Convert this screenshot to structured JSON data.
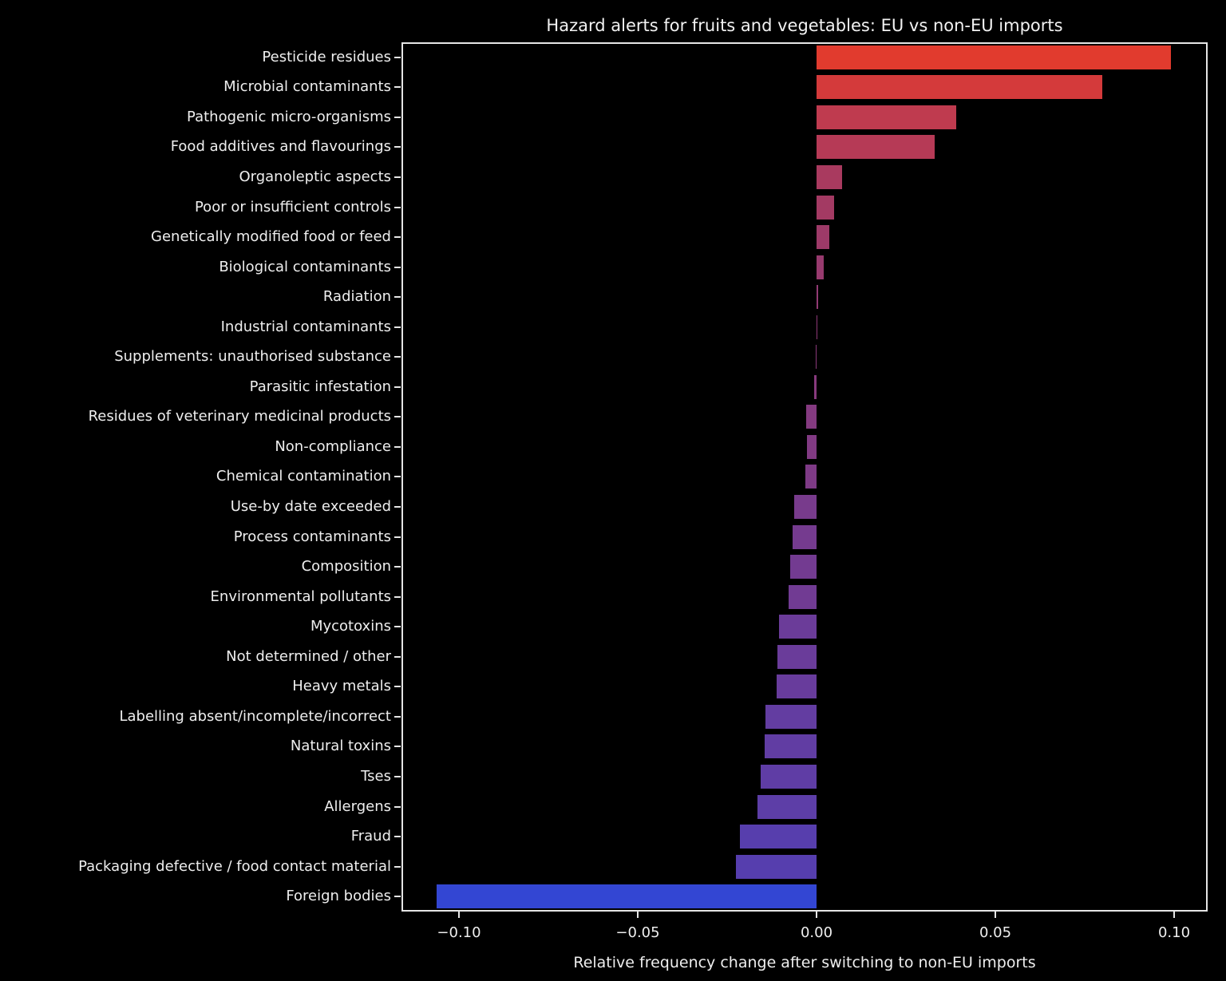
{
  "chart_data": {
    "type": "bar",
    "orientation": "horizontal",
    "title": "Hazard alerts for fruits and vegetables: EU vs non-EU imports",
    "xlabel": "Relative frequency change after switching to non-EU imports",
    "xlim": [
      -0.116,
      0.109
    ],
    "xticks": [
      -0.1,
      -0.05,
      0.0,
      0.05,
      0.1
    ],
    "xtick_labels": [
      "−0.10",
      "−0.05",
      "0.00",
      "0.05",
      "0.10"
    ],
    "grid": false,
    "legend": "none",
    "background_color": "#000000",
    "axis_color": "#e6e6e6",
    "text_color": "#eeeeee",
    "categories": [
      "Pesticide residues",
      "Microbial contaminants",
      "Pathogenic micro-organisms",
      "Food additives and flavourings",
      "Organoleptic aspects",
      "Poor or insufficient controls",
      "Genetically modified food or feed",
      "Biological contaminants",
      "Radiation",
      "Industrial contaminants",
      "Supplements: unauthorised substance",
      "Parasitic infestation",
      "Residues of veterinary medicinal products",
      "Non-compliance",
      "Chemical contamination",
      "Use-by date exceeded",
      "Process contaminants",
      "Composition",
      "Environmental pollutants",
      "Mycotoxins",
      "Not determined / other",
      "Heavy metals",
      "Labelling absent/incomplete/incorrect",
      "Natural toxins",
      "Tses",
      "Allergens",
      "Fraud",
      "Packaging defective / food contact material",
      "Foreign bodies"
    ],
    "values": [
      0.099,
      0.08,
      0.039,
      0.033,
      0.0071,
      0.005,
      0.0036,
      0.002,
      0.0005,
      0.0001,
      -0.0003,
      -0.0007,
      -0.0028,
      -0.0027,
      -0.0031,
      -0.0063,
      -0.0067,
      -0.0074,
      -0.0078,
      -0.0105,
      -0.0109,
      -0.0112,
      -0.0142,
      -0.0144,
      -0.0156,
      -0.0165,
      -0.0215,
      -0.0226,
      -0.1063
    ],
    "bar_colors": [
      "#e13b2e",
      "#d43a3b",
      "#bf3b4f",
      "#b63a56",
      "#a93a5f",
      "#a33a63",
      "#9d3a68",
      "#973a6e",
      "#913a74",
      "#8d3977",
      "#8a397a",
      "#873a7d",
      "#843a80",
      "#813a83",
      "#7e3a86",
      "#783b8c",
      "#753b8f",
      "#733b91",
      "#713b93",
      "#6b3c99",
      "#6a3c9a",
      "#683c9c",
      "#633da1",
      "#613da3",
      "#5f3da5",
      "#5d3ea7",
      "#573ead",
      "#563eae",
      "#3346d3"
    ]
  }
}
